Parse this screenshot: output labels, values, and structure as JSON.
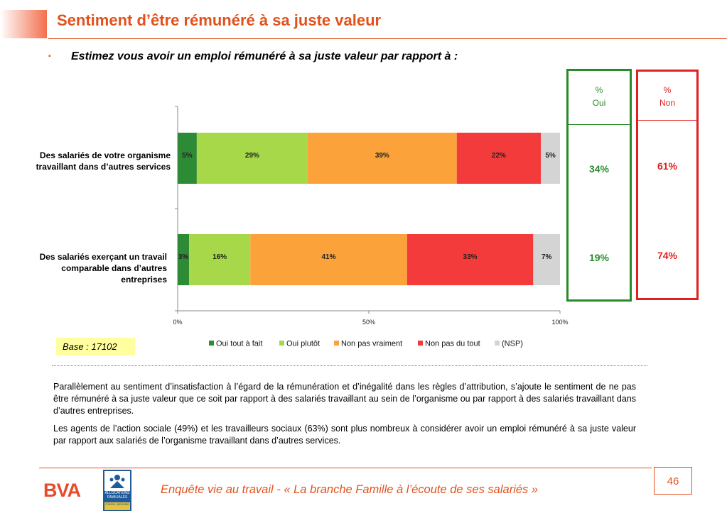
{
  "header": {
    "title": "Sentiment d’être rémunéré à sa juste valeur",
    "bullet": "▪",
    "question": "Estimez vous avoir un emploi rémunéré à sa juste valeur par rapport à :"
  },
  "chart_data": {
    "type": "bar",
    "orientation": "horizontal",
    "stacked": true,
    "categories": [
      "Des salariés de votre organisme travaillant dans d’autres services",
      "Des salariés exerçant un travail comparable dans d’autres entreprises"
    ],
    "series": [
      {
        "name": "Oui tout à fait",
        "color": "#2e8b35",
        "values": [
          5,
          3
        ],
        "labels": [
          "5%",
          "3%"
        ]
      },
      {
        "name": "Oui plutôt",
        "color": "#a6d84a",
        "values": [
          29,
          16
        ],
        "labels": [
          "29%",
          "16%"
        ]
      },
      {
        "name": "Non pas vraiment",
        "color": "#fba23a",
        "values": [
          39,
          41
        ],
        "labels": [
          "39%",
          "41%"
        ]
      },
      {
        "name": "Non pas du tout",
        "color": "#f33b3b",
        "values": [
          22,
          33
        ],
        "labels": [
          "22%",
          "33%"
        ]
      },
      {
        "name": "(NSP)",
        "color": "#d4d4d4",
        "values": [
          5,
          7
        ],
        "labels": [
          "5%",
          "7%"
        ]
      }
    ],
    "xlim": [
      0,
      100
    ],
    "xticks": [
      "0%",
      "50%",
      "100%"
    ],
    "legend_position": "bottom"
  },
  "summary": {
    "oui": {
      "header_line1": "%",
      "header_line2": "Oui",
      "values": [
        "34%",
        "19%"
      ],
      "color": "#2a8a2a"
    },
    "non": {
      "header_line1": "%",
      "header_line2": "Non",
      "values": [
        "61%",
        "74%"
      ],
      "color": "#e02020"
    }
  },
  "base": "Base : 17102",
  "body": {
    "paragraph1": "Parallèlement au sentiment d’insatisfaction à l’égard de la rémunération et d’inégalité dans les règles d’attribution, s’ajoute le sentiment de ne pas être rémunéré à sa juste valeur que ce soit par rapport à des salariés travaillant au sein de l’organisme ou par rapport à des salariés travaillant dans d’autres entreprises.",
    "paragraph2": "Les agents de l’action sociale (49%) et les travailleurs sociaux (63%) sont plus nombreux à considérer avoir un emploi rémunéré à sa juste valeur par rapport aux salariés de l’organisme travaillant dans d’autres services."
  },
  "footer": {
    "bva_logo": "BVA",
    "caf_logo_text": "ALLOCATIONS FAMILIALES",
    "caf_logo_sub": "Caisse nationale",
    "text": "Enquête vie au travail - « La branche Famille à l’écoute de ses salariés »",
    "page_number": "46"
  }
}
